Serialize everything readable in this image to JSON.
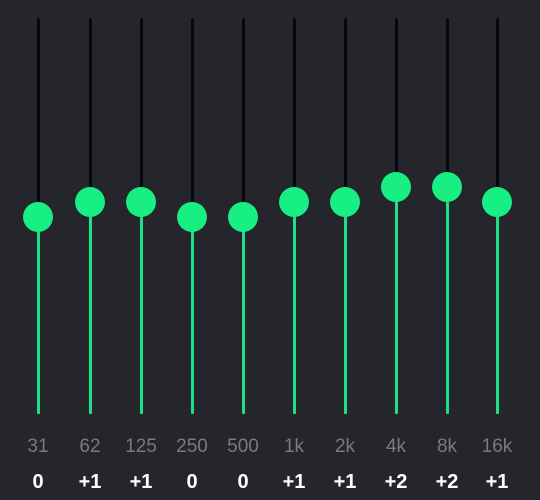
{
  "equalizer": {
    "colors": {
      "background": "#25262c",
      "track": "#050812",
      "active": "#1fe08a",
      "thumb": "#18ef83",
      "frequency_text": "#777a82",
      "gain_text": "#ffffff"
    },
    "gain_range": [
      -8,
      8
    ],
    "bands": [
      {
        "frequency": "31",
        "gain": "0",
        "gain_value": 0
      },
      {
        "frequency": "62",
        "gain": "+1",
        "gain_value": 1
      },
      {
        "frequency": "125",
        "gain": "+1",
        "gain_value": 1
      },
      {
        "frequency": "250",
        "gain": "0",
        "gain_value": 0
      },
      {
        "frequency": "500",
        "gain": "0",
        "gain_value": 0
      },
      {
        "frequency": "1k",
        "gain": "+1",
        "gain_value": 1
      },
      {
        "frequency": "2k",
        "gain": "+1",
        "gain_value": 1
      },
      {
        "frequency": "4k",
        "gain": "+2",
        "gain_value": 2
      },
      {
        "frequency": "8k",
        "gain": "+2",
        "gain_value": 2
      },
      {
        "frequency": "16k",
        "gain": "+1",
        "gain_value": 1
      }
    ]
  }
}
